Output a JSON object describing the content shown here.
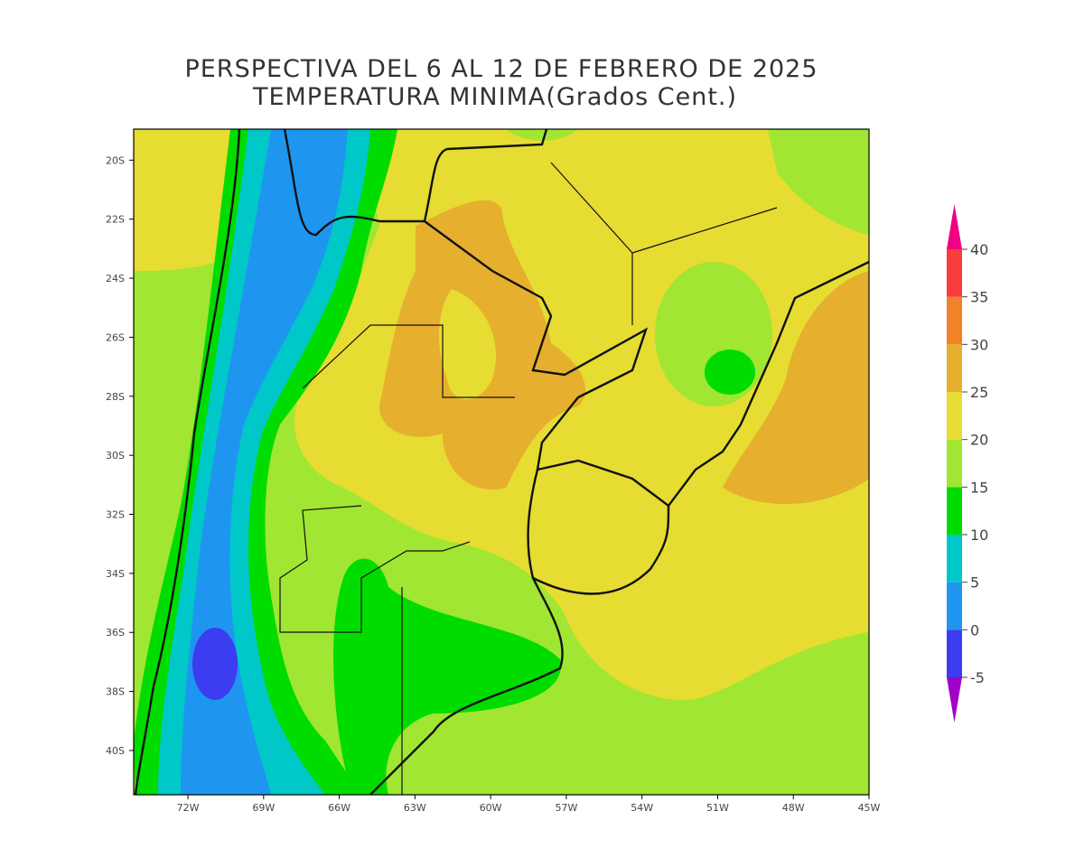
{
  "title": [
    "PERSPECTIVA DEL 6 AL 12 DE FEBRERO DE 2025",
    "TEMPERATURA MINIMA(Grados Cent.)"
  ],
  "map": {
    "xlim": [
      -74.15,
      -45
    ],
    "ylim": [
      -41.5,
      -18.95
    ],
    "xticks": [
      {
        "value": -72,
        "label": "72W"
      },
      {
        "value": -69,
        "label": "69W"
      },
      {
        "value": -66,
        "label": "66W"
      },
      {
        "value": -63,
        "label": "63W"
      },
      {
        "value": -60,
        "label": "60W"
      },
      {
        "value": -57,
        "label": "57W"
      },
      {
        "value": -54,
        "label": "54W"
      },
      {
        "value": -51,
        "label": "51W"
      },
      {
        "value": -48,
        "label": "48W"
      },
      {
        "value": -45,
        "label": "45W"
      }
    ],
    "yticks": [
      {
        "value": -20,
        "label": "20S"
      },
      {
        "value": -22,
        "label": "22S"
      },
      {
        "value": -24,
        "label": "24S"
      },
      {
        "value": -26,
        "label": "26S"
      },
      {
        "value": -28,
        "label": "28S"
      },
      {
        "value": -30,
        "label": "30S"
      },
      {
        "value": -32,
        "label": "32S"
      },
      {
        "value": -34,
        "label": "34S"
      },
      {
        "value": -36,
        "label": "36S"
      },
      {
        "value": -38,
        "label": "38S"
      },
      {
        "value": -40,
        "label": "40S"
      }
    ]
  },
  "colorbar": {
    "levels": [
      -5,
      0,
      5,
      10,
      15,
      20,
      25,
      30,
      35,
      40
    ],
    "colors": [
      "#a000c8",
      "#3c3cf0",
      "#1e96f0",
      "#00c8c8",
      "#00dc00",
      "#a0e632",
      "#e6dc32",
      "#e6af2d",
      "#f08228",
      "#fa3c3c",
      "#f00082"
    ]
  }
}
